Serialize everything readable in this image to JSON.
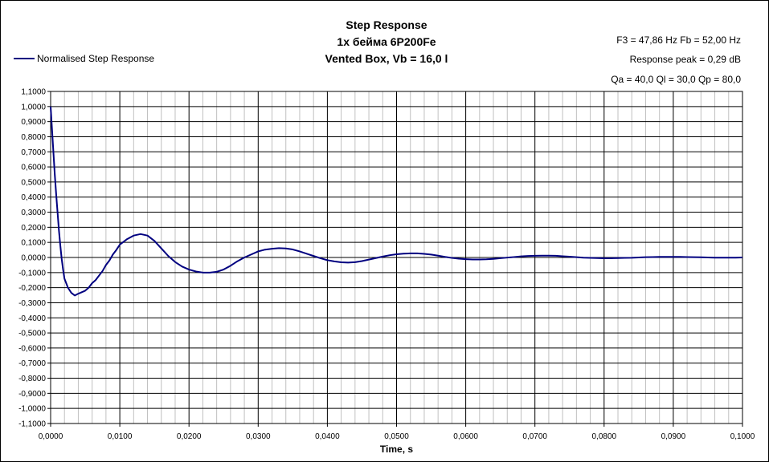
{
  "title_lines": [
    "Step Response",
    "1x  бейма 6P200Fe",
    "Vented Box, Vb = 16,0 l"
  ],
  "info_lines": [
    "F3 = 47,86 Hz  Fb = 52,00 Hz",
    "Response peak = 0,29 dB",
    "Qa = 40,0  Ql = 30,0  Qp = 80,0"
  ],
  "legend_label": "Normalised Step Response",
  "colors": {
    "series": "#000080",
    "grid": "#000000",
    "minor_grid": "#c0c0c0"
  },
  "chart_data": {
    "type": "line",
    "title": "Step Response",
    "xlabel": "Time, s",
    "ylabel": "",
    "xlim": [
      0,
      0.1
    ],
    "ylim": [
      -1.1,
      1.1
    ],
    "grid": true,
    "legend": "top-left",
    "x_tick_labels": [
      "0,0000",
      "0,0100",
      "0,0200",
      "0,0300",
      "0,0400",
      "0,0500",
      "0,0600",
      "0,0700",
      "0,0800",
      "0,0900",
      "0,1000"
    ],
    "y_tick_labels": [
      "1,1000",
      "1,0000",
      "0,9000",
      "0,8000",
      "0,7000",
      "0,6000",
      "0,5000",
      "0,4000",
      "0,3000",
      "0,2000",
      "0,1000",
      "0,0000",
      "-0,1000",
      "-0,2000",
      "-0,3000",
      "-0,4000",
      "-0,5000",
      "-0,6000",
      "-0,7000",
      "-0,8000",
      "-0,9000",
      "-1,0000",
      "-1,1000"
    ],
    "series": [
      {
        "name": "Normalised Step Response",
        "points": [
          [
            0.0,
            1.0
          ],
          [
            0.0002,
            0.85
          ],
          [
            0.0004,
            0.7
          ],
          [
            0.0006,
            0.55
          ],
          [
            0.0008,
            0.42
          ],
          [
            0.001,
            0.3
          ],
          [
            0.0012,
            0.18
          ],
          [
            0.0014,
            0.08
          ],
          [
            0.0016,
            -0.01
          ],
          [
            0.0018,
            -0.08
          ],
          [
            0.002,
            -0.14
          ],
          [
            0.0025,
            -0.2
          ],
          [
            0.003,
            -0.235
          ],
          [
            0.0035,
            -0.252
          ],
          [
            0.004,
            -0.24
          ],
          [
            0.0045,
            -0.23
          ],
          [
            0.005,
            -0.22
          ],
          [
            0.0055,
            -0.2
          ],
          [
            0.006,
            -0.17
          ],
          [
            0.0065,
            -0.15
          ],
          [
            0.007,
            -0.12
          ],
          [
            0.0075,
            -0.09
          ],
          [
            0.008,
            -0.05
          ],
          [
            0.0085,
            -0.02
          ],
          [
            0.009,
            0.02
          ],
          [
            0.0095,
            0.05
          ],
          [
            0.01,
            0.085
          ],
          [
            0.011,
            0.12
          ],
          [
            0.012,
            0.145
          ],
          [
            0.013,
            0.155
          ],
          [
            0.014,
            0.145
          ],
          [
            0.015,
            0.11
          ],
          [
            0.016,
            0.06
          ],
          [
            0.017,
            0.01
          ],
          [
            0.018,
            -0.03
          ],
          [
            0.019,
            -0.06
          ],
          [
            0.02,
            -0.08
          ],
          [
            0.021,
            -0.093
          ],
          [
            0.022,
            -0.1
          ],
          [
            0.023,
            -0.1
          ],
          [
            0.024,
            -0.095
          ],
          [
            0.025,
            -0.08
          ],
          [
            0.026,
            -0.055
          ],
          [
            0.027,
            -0.025
          ],
          [
            0.028,
            0.0
          ],
          [
            0.029,
            0.02
          ],
          [
            0.03,
            0.04
          ],
          [
            0.031,
            0.052
          ],
          [
            0.032,
            0.058
          ],
          [
            0.033,
            0.062
          ],
          [
            0.034,
            0.06
          ],
          [
            0.035,
            0.053
          ],
          [
            0.036,
            0.04
          ],
          [
            0.037,
            0.025
          ],
          [
            0.038,
            0.01
          ],
          [
            0.039,
            -0.005
          ],
          [
            0.04,
            -0.018
          ],
          [
            0.041,
            -0.026
          ],
          [
            0.042,
            -0.032
          ],
          [
            0.043,
            -0.034
          ],
          [
            0.044,
            -0.031
          ],
          [
            0.045,
            -0.024
          ],
          [
            0.046,
            -0.014
          ],
          [
            0.047,
            -0.004
          ],
          [
            0.048,
            0.006
          ],
          [
            0.049,
            0.015
          ],
          [
            0.05,
            0.021
          ],
          [
            0.051,
            0.025
          ],
          [
            0.052,
            0.027
          ],
          [
            0.053,
            0.027
          ],
          [
            0.054,
            0.024
          ],
          [
            0.055,
            0.019
          ],
          [
            0.056,
            0.012
          ],
          [
            0.057,
            0.004
          ],
          [
            0.058,
            -0.003
          ],
          [
            0.059,
            -0.008
          ],
          [
            0.06,
            -0.011
          ],
          [
            0.061,
            -0.013
          ],
          [
            0.062,
            -0.013
          ],
          [
            0.063,
            -0.012
          ],
          [
            0.064,
            -0.009
          ],
          [
            0.065,
            -0.005
          ],
          [
            0.066,
            -0.001
          ],
          [
            0.067,
            0.003
          ],
          [
            0.068,
            0.007
          ],
          [
            0.069,
            0.01
          ],
          [
            0.07,
            0.011
          ],
          [
            0.071,
            0.012
          ],
          [
            0.072,
            0.012
          ],
          [
            0.073,
            0.011
          ],
          [
            0.074,
            0.008
          ],
          [
            0.075,
            0.005
          ],
          [
            0.076,
            0.002
          ],
          [
            0.077,
            -0.001
          ],
          [
            0.078,
            -0.003
          ],
          [
            0.079,
            -0.004
          ],
          [
            0.08,
            -0.005
          ],
          [
            0.081,
            -0.005
          ],
          [
            0.082,
            -0.004
          ],
          [
            0.083,
            -0.003
          ],
          [
            0.084,
            -0.002
          ],
          [
            0.085,
            0.0
          ],
          [
            0.086,
            0.002
          ],
          [
            0.087,
            0.003
          ],
          [
            0.088,
            0.004
          ],
          [
            0.089,
            0.004
          ],
          [
            0.09,
            0.004
          ],
          [
            0.091,
            0.004
          ],
          [
            0.092,
            0.003
          ],
          [
            0.093,
            0.002
          ],
          [
            0.094,
            0.001
          ],
          [
            0.095,
            0.0
          ],
          [
            0.096,
            -0.001
          ],
          [
            0.097,
            -0.001
          ],
          [
            0.098,
            -0.001
          ],
          [
            0.099,
            -0.001
          ],
          [
            0.1,
            0.0
          ]
        ]
      }
    ]
  }
}
